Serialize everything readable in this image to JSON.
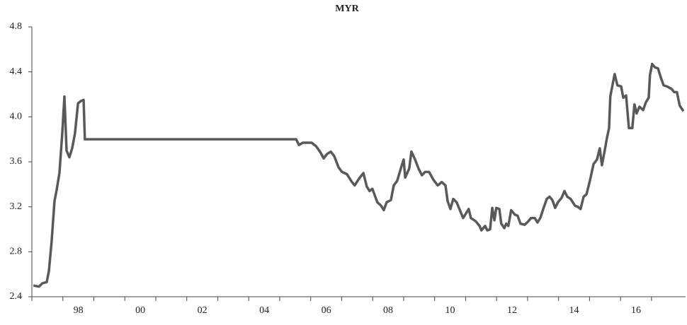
{
  "chart_data": {
    "type": "line",
    "title": "MYR",
    "x": [
      1997.05,
      1997.23,
      1997.34,
      1997.48,
      1997.55,
      1997.64,
      1997.73,
      1997.8,
      1997.89,
      1997.98,
      1998.05,
      1998.12,
      1998.21,
      1998.3,
      1998.39,
      1998.49,
      1998.58,
      1998.67,
      1998.71,
      2005.53,
      2005.62,
      2005.75,
      2006.03,
      2006.17,
      2006.3,
      2006.42,
      2006.53,
      2006.65,
      2006.76,
      2006.9,
      2007.01,
      2007.17,
      2007.33,
      2007.42,
      2007.56,
      2007.7,
      2007.81,
      2007.9,
      2007.99,
      2008.15,
      2008.27,
      2008.36,
      2008.45,
      2008.59,
      2008.68,
      2008.79,
      2008.93,
      2009.0,
      2009.05,
      2009.18,
      2009.25,
      2009.37,
      2009.48,
      2009.59,
      2009.69,
      2009.82,
      2009.96,
      2010.1,
      2010.23,
      2010.35,
      2010.42,
      2010.51,
      2010.6,
      2010.71,
      2010.83,
      2010.92,
      2011.01,
      2011.1,
      2011.17,
      2011.33,
      2011.45,
      2011.51,
      2011.63,
      2011.7,
      2011.79,
      2011.86,
      2011.93,
      2011.99,
      2012.09,
      2012.15,
      2012.25,
      2012.31,
      2012.38,
      2012.47,
      2012.59,
      2012.68,
      2012.77,
      2012.91,
      2013.02,
      2013.11,
      2013.23,
      2013.32,
      2013.41,
      2013.53,
      2013.62,
      2013.71,
      2013.8,
      2013.89,
      2013.98,
      2014.1,
      2014.19,
      2014.28,
      2014.39,
      2014.53,
      2014.62,
      2014.71,
      2014.81,
      2014.9,
      2015.01,
      2015.13,
      2015.24,
      2015.33,
      2015.4,
      2015.49,
      2015.56,
      2015.63,
      2015.67,
      2015.81,
      2015.9,
      2016.02,
      2016.09,
      2016.18,
      2016.27,
      2016.38,
      2016.45,
      2016.52,
      2016.61,
      2016.73,
      2016.82,
      2016.91,
      2016.95,
      2017.02,
      2017.11,
      2017.21,
      2017.3,
      2017.39,
      2017.5,
      2017.64,
      2017.73,
      2017.82,
      2017.91,
      2018.03
    ],
    "series": [
      {
        "name": "MYR",
        "color": "#595959",
        "values": [
          2.5,
          2.49,
          2.52,
          2.53,
          2.63,
          2.9,
          3.25,
          3.35,
          3.5,
          3.85,
          4.18,
          3.7,
          3.64,
          3.72,
          3.85,
          4.12,
          4.14,
          4.15,
          3.8,
          3.8,
          3.75,
          3.77,
          3.77,
          3.74,
          3.69,
          3.63,
          3.67,
          3.69,
          3.65,
          3.55,
          3.51,
          3.49,
          3.42,
          3.39,
          3.45,
          3.5,
          3.38,
          3.34,
          3.36,
          3.24,
          3.21,
          3.17,
          3.24,
          3.26,
          3.39,
          3.43,
          3.56,
          3.62,
          3.46,
          3.54,
          3.69,
          3.62,
          3.54,
          3.48,
          3.51,
          3.51,
          3.44,
          3.39,
          3.42,
          3.39,
          3.25,
          3.18,
          3.27,
          3.24,
          3.16,
          3.1,
          3.14,
          3.18,
          3.1,
          3.07,
          3.03,
          2.99,
          3.03,
          2.99,
          3.0,
          3.19,
          3.08,
          3.19,
          3.18,
          3.05,
          3.01,
          3.05,
          3.03,
          3.17,
          3.13,
          3.12,
          3.05,
          3.04,
          3.07,
          3.1,
          3.1,
          3.06,
          3.1,
          3.2,
          3.27,
          3.29,
          3.26,
          3.19,
          3.24,
          3.28,
          3.34,
          3.29,
          3.27,
          3.21,
          3.2,
          3.18,
          3.29,
          3.31,
          3.43,
          3.58,
          3.62,
          3.72,
          3.57,
          3.7,
          3.81,
          3.9,
          4.18,
          4.38,
          4.28,
          4.27,
          4.17,
          4.19,
          3.9,
          3.9,
          4.11,
          4.03,
          4.09,
          4.06,
          4.13,
          4.17,
          4.37,
          4.47,
          4.44,
          4.43,
          4.35,
          4.28,
          4.27,
          4.25,
          4.22,
          4.22,
          4.1,
          4.05
        ]
      }
    ],
    "xlim": [
      1997,
      2018.1
    ],
    "xticks": [
      {
        "value": 1998,
        "label": "98"
      },
      {
        "value": 2000,
        "label": "00"
      },
      {
        "value": 2002,
        "label": "02"
      },
      {
        "value": 2004,
        "label": "04"
      },
      {
        "value": 2006,
        "label": "06"
      },
      {
        "value": 2008,
        "label": "08"
      },
      {
        "value": 2010,
        "label": "10"
      },
      {
        "value": 2012,
        "label": "12"
      },
      {
        "value": 2014,
        "label": "14"
      },
      {
        "value": 2016,
        "label": "16"
      }
    ],
    "minor_xticks": [
      1997,
      1999,
      2001,
      2003,
      2005,
      2007,
      2009,
      2011,
      2013,
      2015,
      2017
    ],
    "ylim": [
      2.4,
      4.8
    ],
    "yticks": [
      2.4,
      2.8,
      3.2,
      3.6,
      {
        "value": 4,
        "label": "4.0"
      },
      4.4,
      4.8
    ],
    "grid": false
  }
}
